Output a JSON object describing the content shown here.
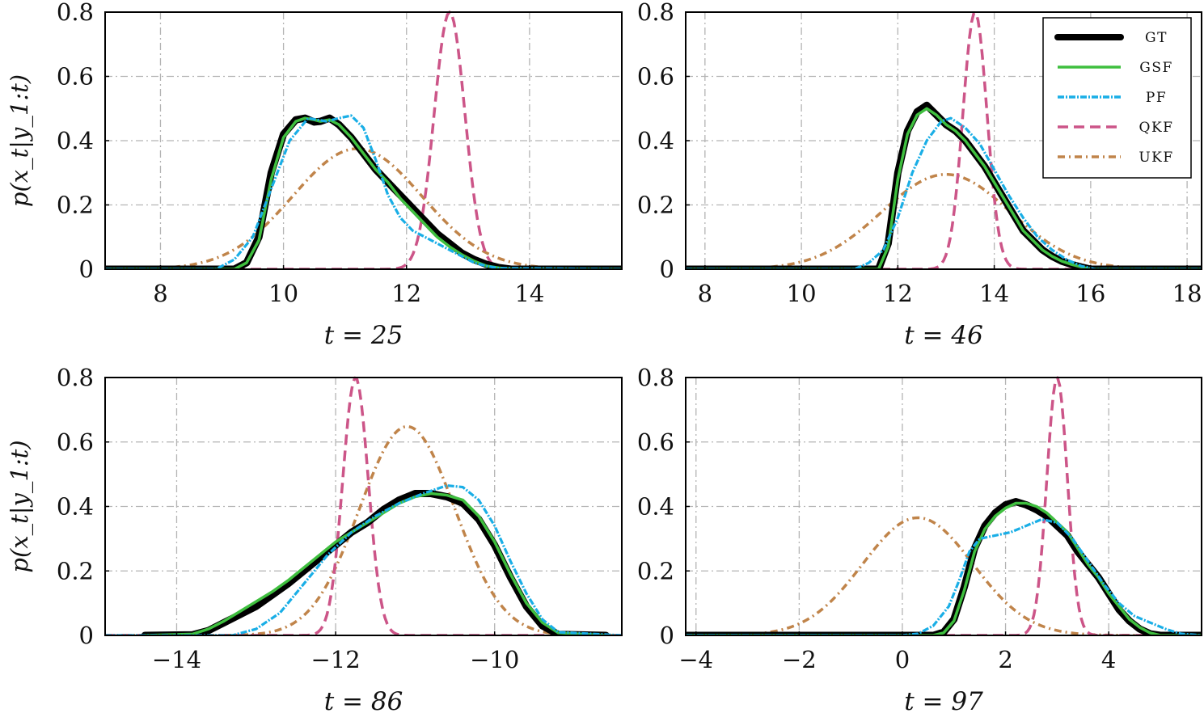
{
  "colors": {
    "GT": "#000000",
    "GSF": "#3fbf3f",
    "PF": "#19aee6",
    "QKF": "#cc5588",
    "UKF": "#c0844a"
  },
  "styles": {
    "GT": {
      "width": 9,
      "dash": ""
    },
    "GSF": {
      "width": 3.5,
      "dash": ""
    },
    "PF": {
      "width": 3.2,
      "dash": "8 2 2 2"
    },
    "QKF": {
      "width": 3.5,
      "dash": "13 7"
    },
    "UKF": {
      "width": 3.5,
      "dash": "9 5 2 5"
    }
  },
  "legend": {
    "entries": [
      "GT",
      "GSF",
      "PF",
      "QKF",
      "UKF"
    ],
    "placement": "top-right of t = 46 panel"
  },
  "y_axis_label": "p(x_t|y_1:t)",
  "chart_data": [
    {
      "type": "line",
      "xlabel": "t = 25",
      "ylabel": "p(x_t|y_1:t)",
      "xlim": [
        7.1,
        15.5
      ],
      "ylim": [
        0,
        0.8
      ],
      "xticks": [
        8,
        10,
        12,
        14
      ],
      "xtick_labels": [
        "8",
        "10",
        "12",
        "14"
      ],
      "yticks": [
        0,
        0.2,
        0.4,
        0.6,
        0.8
      ],
      "ytick_labels": [
        "0",
        "0.2",
        "0.4",
        "0.6",
        "0.8"
      ],
      "grid": true,
      "series": [
        {
          "name": "GT",
          "x": [
            7.1,
            9.2,
            9.4,
            9.6,
            9.8,
            10.0,
            10.2,
            10.35,
            10.5,
            10.6,
            10.75,
            10.9,
            11.1,
            11.3,
            11.5,
            11.7,
            11.9,
            12.1,
            12.3,
            12.5,
            12.7,
            12.9,
            13.1,
            13.3,
            13.5,
            13.7,
            15.5
          ],
          "y": [
            0,
            0,
            0.02,
            0.1,
            0.3,
            0.42,
            0.465,
            0.47,
            0.458,
            0.46,
            0.47,
            0.45,
            0.41,
            0.36,
            0.31,
            0.27,
            0.23,
            0.19,
            0.15,
            0.11,
            0.08,
            0.05,
            0.03,
            0.015,
            0.005,
            0,
            0
          ]
        },
        {
          "name": "GSF",
          "x": [
            7.1,
            9.2,
            9.4,
            9.6,
            9.8,
            10.0,
            10.2,
            10.35,
            10.5,
            10.6,
            10.75,
            10.9,
            11.1,
            11.3,
            11.5,
            11.7,
            11.9,
            12.1,
            12.3,
            12.5,
            12.7,
            12.9,
            13.1,
            13.3,
            13.5,
            13.7,
            15.5
          ],
          "y": [
            0,
            0,
            0.02,
            0.09,
            0.28,
            0.41,
            0.46,
            0.47,
            0.465,
            0.46,
            0.465,
            0.45,
            0.41,
            0.36,
            0.31,
            0.27,
            0.22,
            0.18,
            0.14,
            0.1,
            0.07,
            0.045,
            0.025,
            0.01,
            0.004,
            0,
            0
          ]
        },
        {
          "name": "PF",
          "x": [
            7.1,
            8.9,
            9.2,
            9.5,
            9.8,
            10.1,
            10.4,
            10.7,
            10.9,
            11.1,
            11.3,
            11.5,
            11.7,
            11.9,
            12.1,
            12.3,
            12.5,
            12.7,
            12.9,
            13.1,
            13.3,
            13.5,
            15.5
          ],
          "y": [
            0,
            0,
            0.03,
            0.1,
            0.25,
            0.4,
            0.47,
            0.46,
            0.47,
            0.478,
            0.44,
            0.34,
            0.23,
            0.16,
            0.12,
            0.1,
            0.08,
            0.06,
            0.04,
            0.02,
            0.01,
            0.003,
            0
          ]
        },
        {
          "name": "QKF",
          "mu": 12.7,
          "sigma": 0.25,
          "peak": 0.8
        },
        {
          "name": "UKF",
          "mu": 11.2,
          "sigma": 1.05,
          "peak": 0.375
        }
      ]
    },
    {
      "type": "line",
      "xlabel": "t = 46",
      "ylabel": "",
      "xlim": [
        7.6,
        18.3
      ],
      "ylim": [
        0,
        0.8
      ],
      "xticks": [
        8,
        10,
        12,
        14,
        16,
        18
      ],
      "xtick_labels": [
        "8",
        "10",
        "12",
        "14",
        "16",
        "18"
      ],
      "yticks": [
        0,
        0.2,
        0.4,
        0.6,
        0.8
      ],
      "ytick_labels": [
        "0",
        "0.2",
        "0.4",
        "0.6",
        "0.8"
      ],
      "grid": true,
      "series": [
        {
          "name": "GT",
          "x": [
            7.6,
            11.6,
            11.8,
            12.0,
            12.2,
            12.4,
            12.6,
            12.8,
            13.0,
            13.2,
            13.4,
            13.6,
            13.8,
            14.0,
            14.2,
            14.4,
            14.6,
            14.8,
            15.0,
            15.2,
            15.4,
            15.6,
            15.8,
            16.0,
            18.3
          ],
          "y": [
            0,
            0,
            0.08,
            0.3,
            0.43,
            0.49,
            0.51,
            0.48,
            0.45,
            0.43,
            0.4,
            0.36,
            0.32,
            0.27,
            0.22,
            0.17,
            0.12,
            0.09,
            0.06,
            0.04,
            0.025,
            0.015,
            0.007,
            0,
            0
          ]
        },
        {
          "name": "GSF",
          "x": [
            7.6,
            11.6,
            11.8,
            12.0,
            12.2,
            12.4,
            12.6,
            12.8,
            13.0,
            13.2,
            13.4,
            13.6,
            13.8,
            14.0,
            14.2,
            14.4,
            14.6,
            14.8,
            15.0,
            15.2,
            15.4,
            15.6,
            15.8,
            16.0,
            18.3
          ],
          "y": [
            0,
            0,
            0.07,
            0.28,
            0.42,
            0.48,
            0.5,
            0.48,
            0.45,
            0.43,
            0.4,
            0.36,
            0.32,
            0.27,
            0.22,
            0.17,
            0.12,
            0.09,
            0.06,
            0.04,
            0.025,
            0.015,
            0.007,
            0,
            0
          ]
        },
        {
          "name": "PF",
          "x": [
            7.6,
            11.1,
            11.4,
            11.7,
            12.0,
            12.3,
            12.6,
            12.9,
            13.1,
            13.4,
            13.7,
            14.0,
            14.3,
            14.6,
            14.9,
            15.2,
            15.5,
            15.8,
            16.1,
            18.3
          ],
          "y": [
            0,
            0,
            0.02,
            0.06,
            0.16,
            0.3,
            0.4,
            0.46,
            0.47,
            0.44,
            0.39,
            0.31,
            0.23,
            0.16,
            0.1,
            0.06,
            0.03,
            0.01,
            0,
            0
          ]
        },
        {
          "name": "QKF",
          "mu": 13.6,
          "sigma": 0.25,
          "peak": 0.8
        },
        {
          "name": "UKF",
          "mu": 13.0,
          "sigma": 1.33,
          "peak": 0.295
        }
      ]
    },
    {
      "type": "line",
      "xlabel": "t = 86",
      "ylabel": "p(x_t|y_1:t)",
      "xlim": [
        -14.9,
        -8.4
      ],
      "ylim": [
        0,
        0.8
      ],
      "xticks": [
        -14,
        -12,
        -10
      ],
      "xtick_labels": [
        "−14",
        "−12",
        "−10"
      ],
      "yticks": [
        0,
        0.2,
        0.4,
        0.6,
        0.8
      ],
      "ytick_labels": [
        "0",
        "0.2",
        "0.4",
        "0.6",
        "0.8"
      ],
      "grid": true,
      "series": [
        {
          "name": "GT",
          "x": [
            -14.4,
            -13.8,
            -13.6,
            -13.4,
            -13.2,
            -13.0,
            -12.8,
            -12.6,
            -12.4,
            -12.2,
            -12.0,
            -11.8,
            -11.6,
            -11.4,
            -11.2,
            -11.0,
            -10.8,
            -10.6,
            -10.4,
            -10.2,
            -10.0,
            -9.8,
            -9.6,
            -9.4,
            -9.2,
            -8.6
          ],
          "y": [
            0,
            0.002,
            0.015,
            0.04,
            0.065,
            0.09,
            0.125,
            0.16,
            0.2,
            0.24,
            0.28,
            0.32,
            0.35,
            0.39,
            0.42,
            0.44,
            0.44,
            0.43,
            0.41,
            0.36,
            0.28,
            0.18,
            0.09,
            0.03,
            0.003,
            0
          ]
        },
        {
          "name": "GSF",
          "x": [
            -14.4,
            -13.8,
            -13.6,
            -13.4,
            -13.2,
            -13.0,
            -12.8,
            -12.6,
            -12.4,
            -12.2,
            -12.0,
            -11.8,
            -11.6,
            -11.4,
            -11.2,
            -11.0,
            -10.8,
            -10.6,
            -10.4,
            -10.2,
            -10.0,
            -9.8,
            -9.6,
            -9.4,
            -9.2,
            -8.6
          ],
          "y": [
            0,
            0.004,
            0.02,
            0.045,
            0.075,
            0.105,
            0.135,
            0.17,
            0.21,
            0.25,
            0.29,
            0.32,
            0.35,
            0.38,
            0.41,
            0.43,
            0.44,
            0.435,
            0.42,
            0.37,
            0.29,
            0.19,
            0.1,
            0.04,
            0.008,
            0
          ]
        },
        {
          "name": "PF",
          "x": [
            -14.9,
            -13.3,
            -13.0,
            -12.7,
            -12.4,
            -12.1,
            -11.8,
            -11.5,
            -11.2,
            -10.9,
            -10.6,
            -10.4,
            -10.2,
            -10.0,
            -9.8,
            -9.6,
            -9.4,
            -9.2,
            -8.4
          ],
          "y": [
            0,
            0,
            0.02,
            0.07,
            0.16,
            0.25,
            0.32,
            0.37,
            0.41,
            0.44,
            0.465,
            0.46,
            0.42,
            0.34,
            0.23,
            0.13,
            0.05,
            0.01,
            0
          ]
        },
        {
          "name": "QKF",
          "mu": -11.75,
          "sigma": 0.16,
          "peak": 0.8
        },
        {
          "name": "UKF",
          "mu": -11.1,
          "sigma": 0.6,
          "peak": 0.648
        }
      ]
    },
    {
      "type": "line",
      "xlabel": "t = 97",
      "ylabel": "",
      "xlim": [
        -4.2,
        5.8
      ],
      "ylim": [
        0,
        0.8
      ],
      "xticks": [
        -4,
        -2,
        0,
        2,
        4
      ],
      "xtick_labels": [
        "−4",
        "−2",
        "0",
        "2",
        "4"
      ],
      "yticks": [
        0,
        0.2,
        0.4,
        0.6,
        0.8
      ],
      "ytick_labels": [
        "0",
        "0.2",
        "0.4",
        "0.6",
        "0.8"
      ],
      "grid": true,
      "series": [
        {
          "name": "GT",
          "x": [
            -4.2,
            0.6,
            0.8,
            1.0,
            1.2,
            1.4,
            1.6,
            1.8,
            2.0,
            2.2,
            2.4,
            2.6,
            2.8,
            3.0,
            3.2,
            3.4,
            3.6,
            3.8,
            4.0,
            4.2,
            4.4,
            4.6,
            4.8,
            5.0,
            5.8
          ],
          "y": [
            0,
            0,
            0.01,
            0.05,
            0.15,
            0.27,
            0.34,
            0.38,
            0.405,
            0.415,
            0.405,
            0.39,
            0.37,
            0.34,
            0.31,
            0.26,
            0.22,
            0.18,
            0.13,
            0.08,
            0.045,
            0.02,
            0.005,
            0,
            0
          ]
        },
        {
          "name": "GSF",
          "x": [
            -4.2,
            0.6,
            0.8,
            1.0,
            1.2,
            1.4,
            1.6,
            1.8,
            2.0,
            2.2,
            2.4,
            2.6,
            2.8,
            3.0,
            3.2,
            3.4,
            3.6,
            3.8,
            4.0,
            4.2,
            4.4,
            4.6,
            4.8,
            5.0,
            5.8
          ],
          "y": [
            0,
            0,
            0.008,
            0.045,
            0.14,
            0.26,
            0.33,
            0.37,
            0.395,
            0.41,
            0.41,
            0.4,
            0.38,
            0.35,
            0.32,
            0.27,
            0.22,
            0.18,
            0.13,
            0.09,
            0.05,
            0.025,
            0.008,
            0,
            0
          ]
        },
        {
          "name": "PF",
          "x": [
            -4.2,
            0.0,
            0.3,
            0.6,
            0.9,
            1.1,
            1.3,
            1.5,
            1.8,
            2.1,
            2.4,
            2.7,
            3.0,
            3.3,
            3.6,
            3.9,
            4.2,
            4.5,
            4.8,
            5.1,
            5.4,
            5.8
          ],
          "y": [
            0,
            0,
            0.005,
            0.03,
            0.09,
            0.17,
            0.26,
            0.3,
            0.31,
            0.32,
            0.34,
            0.36,
            0.35,
            0.3,
            0.23,
            0.16,
            0.1,
            0.06,
            0.04,
            0.02,
            0.005,
            0
          ]
        },
        {
          "name": "QKF",
          "mu": 3.0,
          "sigma": 0.2,
          "peak": 0.8
        },
        {
          "name": "UKF",
          "mu": 0.3,
          "sigma": 1.07,
          "peak": 0.365
        }
      ]
    }
  ]
}
